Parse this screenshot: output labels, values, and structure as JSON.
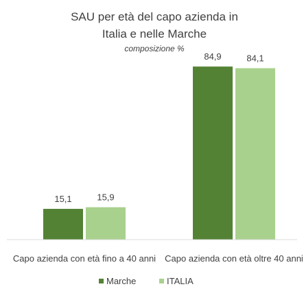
{
  "chart_data": {
    "type": "bar",
    "title": "SAU per età del capo azienda in Italia e nelle Marche",
    "subtitle": "composizione %",
    "categories": [
      "Capo azienda con età fino a 40 anni",
      "Capo azienda con età oltre 40 anni"
    ],
    "series": [
      {
        "name": "Marche",
        "color": "#548235",
        "values": [
          15.1,
          84.9
        ],
        "value_labels": [
          "15,1",
          "84,9"
        ]
      },
      {
        "name": "ITALIA",
        "color": "#a9d18e",
        "values": [
          15.9,
          84.1
        ],
        "value_labels": [
          "15,9",
          "84,1"
        ]
      }
    ],
    "ylim": [
      0,
      90
    ],
    "legend": "bottom"
  }
}
